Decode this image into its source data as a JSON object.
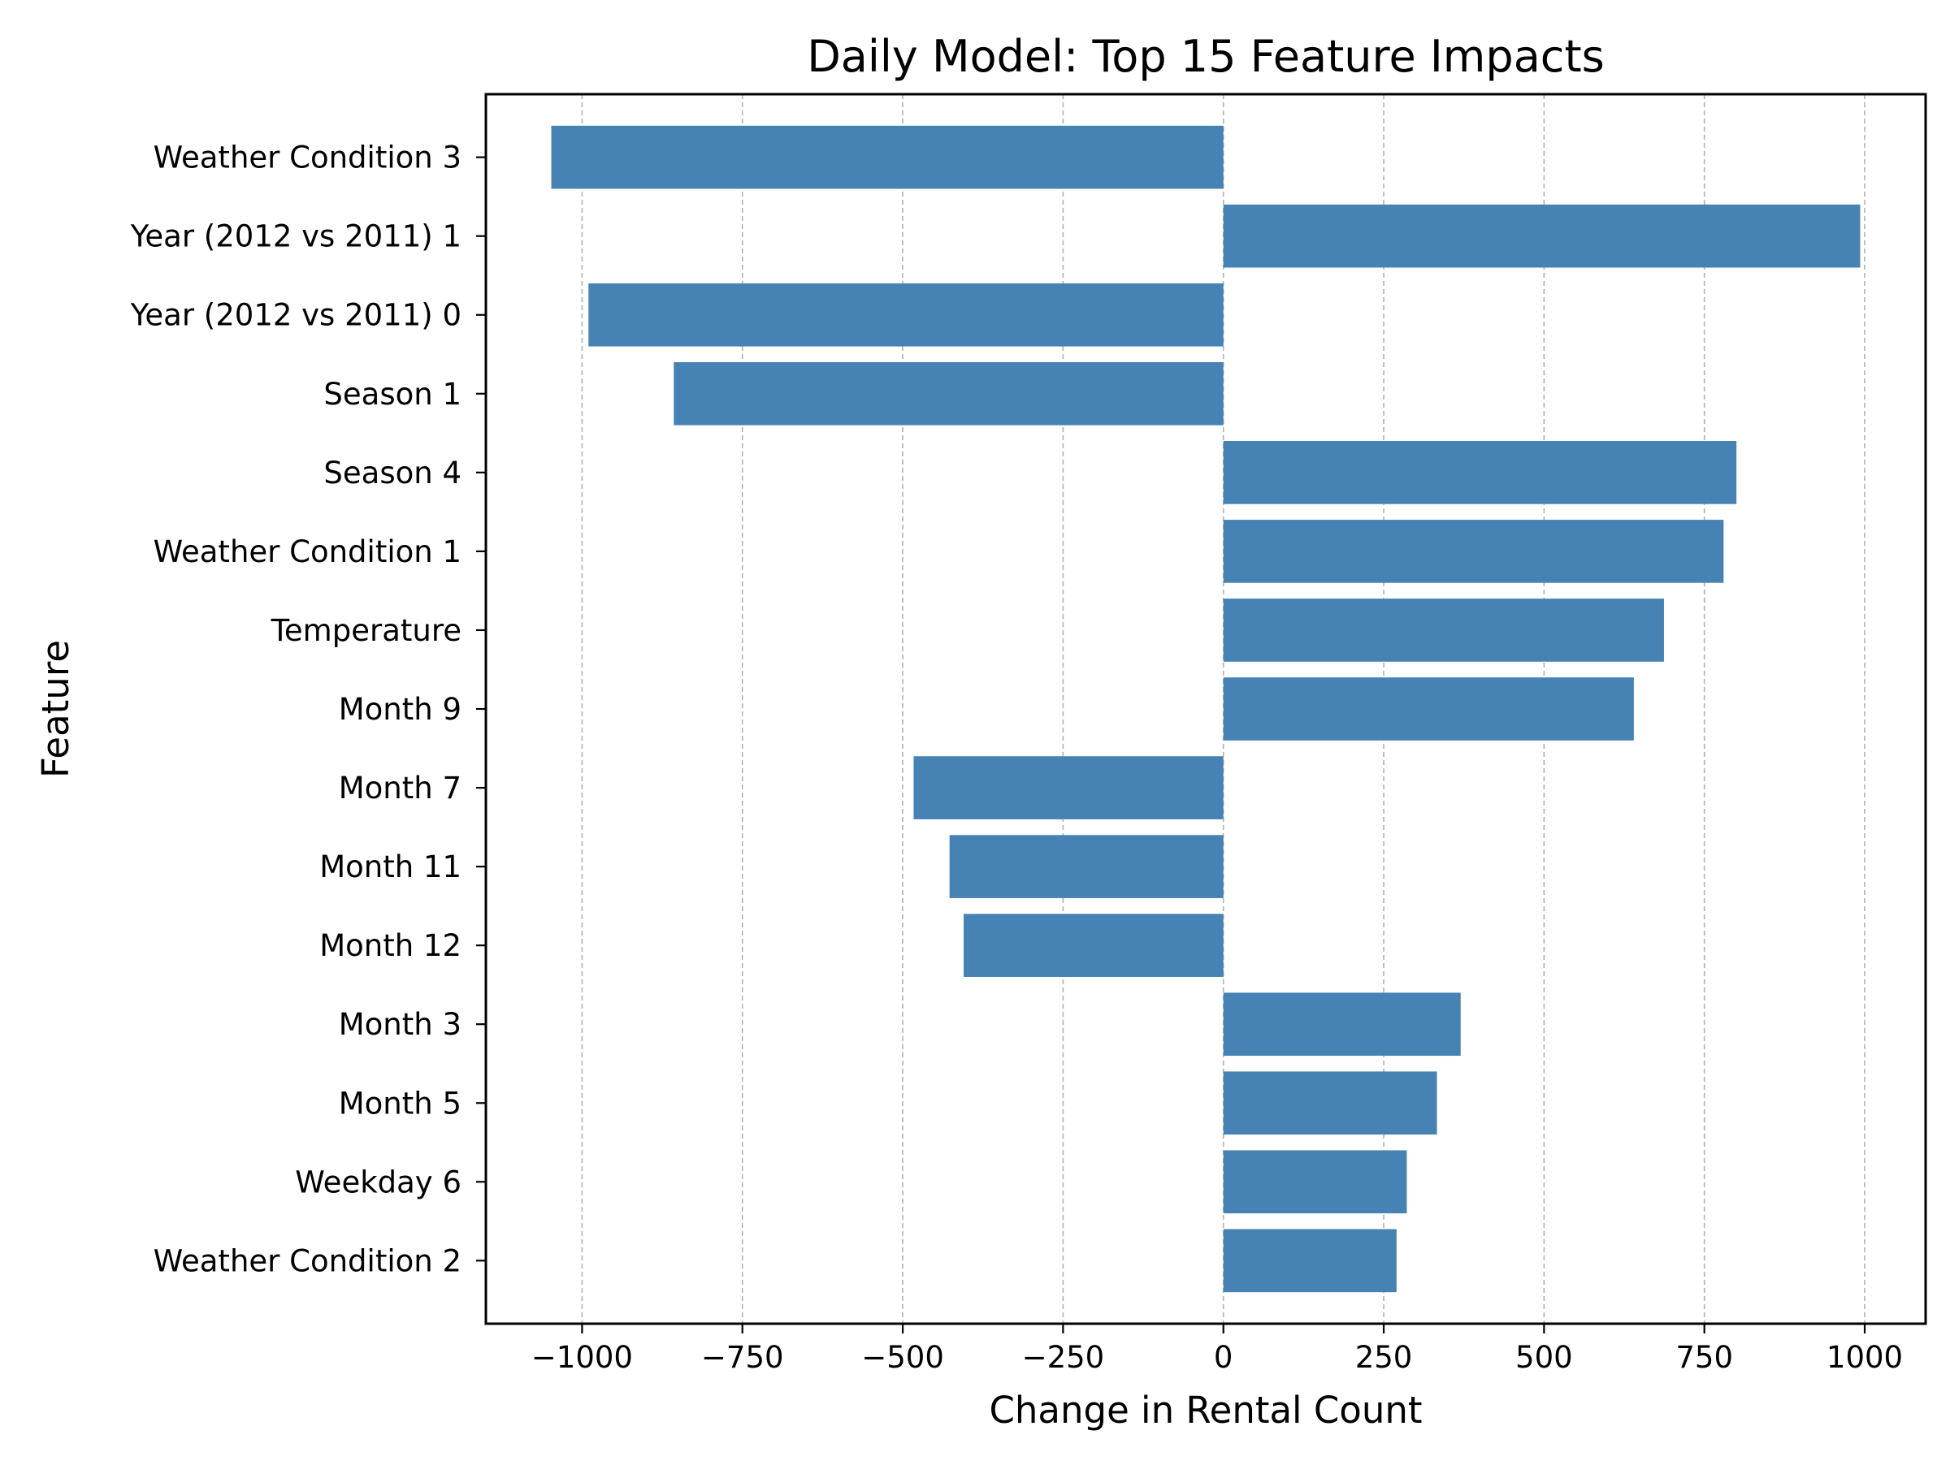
{
  "chart_data": {
    "type": "bar",
    "orientation": "horizontal",
    "title": "Daily Model: Top 15 Feature Impacts",
    "xlabel": "Change in Rental Count",
    "ylabel": "Feature",
    "categories": [
      "Weather Condition 3",
      "Year (2012 vs 2011) 1",
      "Year (2012 vs 2011) 0",
      "Season 1",
      "Season 4",
      "Weather Condition 1",
      "Temperature",
      "Month 9",
      "Month 7",
      "Month 11",
      "Month 12",
      "Month 3",
      "Month 5",
      "Weekday 6",
      "Weather Condition 2"
    ],
    "values": [
      -1048,
      993,
      -990,
      -857,
      800,
      780,
      687,
      640,
      -483,
      -427,
      -405,
      370,
      333,
      286,
      270
    ],
    "xlim": [
      -1150,
      1095
    ],
    "xticks": [
      -1000,
      -750,
      -500,
      -250,
      0,
      250,
      500,
      750,
      1000
    ],
    "xtick_labels": [
      "−1000",
      "−750",
      "−500",
      "−250",
      "0",
      "250",
      "500",
      "750",
      "1000"
    ],
    "grid": "x-axis dashed",
    "bar_color": "#4682b4",
    "grid_color": "#b0b0b0"
  }
}
